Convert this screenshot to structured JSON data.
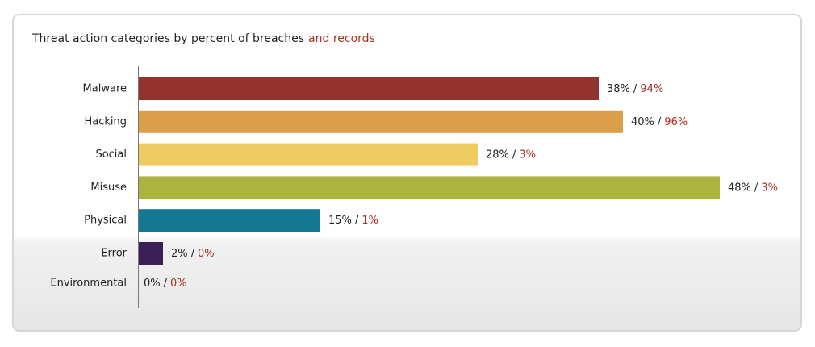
{
  "chart_data": {
    "type": "hbar",
    "title": "Threat action categories by percent of breaches",
    "title_highlight": "and records",
    "categories": [
      "Malware",
      "Hacking",
      "Social",
      "Misuse",
      "Physical",
      "Error",
      "Environmental"
    ],
    "values": [
      38,
      40,
      28,
      48,
      15,
      2,
      0
    ],
    "value_labels": [
      "38%",
      "40%",
      "28%",
      "48%",
      "15%",
      "2%",
      "0%"
    ],
    "colors": [
      "#93332d",
      "#dc9e48",
      "#efcc62",
      "#abb53d",
      "#137993",
      "#3a1f55",
      "#999999"
    ],
    "label_separator": "/",
    "records": {
      "values": [
        94,
        96,
        3,
        3,
        1,
        0,
        0
      ],
      "value_labels": [
        "94%",
        "96%",
        "3%",
        "3%",
        "1%",
        "0%",
        "0%"
      ],
      "color": "#a8311f"
    },
    "xlim": [
      0,
      48
    ]
  }
}
